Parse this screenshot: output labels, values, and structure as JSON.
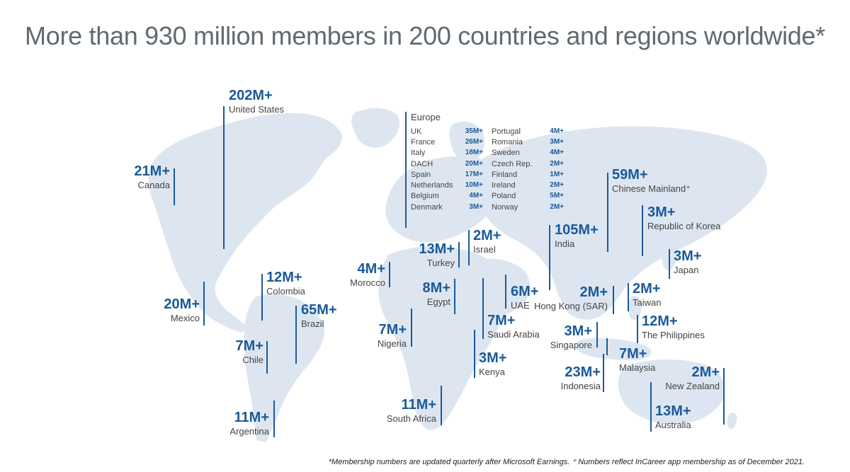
{
  "title": "More than 930 million members in 200 countries and regions worldwide*",
  "footnote": "*Membership numbers are updated quarterly after Microsoft Earnings. ⁺ Numbers reflect InCareer app membership as of December 2021.",
  "colors": {
    "accent": "#1a5a9a",
    "land": "#dde6f0",
    "title": "#5e6a71"
  },
  "regions": [
    {
      "value": "202M+",
      "name": "United States"
    },
    {
      "value": "21M+",
      "name": "Canada"
    },
    {
      "value": "12M+",
      "name": "Colombia"
    },
    {
      "value": "20M+",
      "name": "Mexico"
    },
    {
      "value": "65M+",
      "name": "Brazil"
    },
    {
      "value": "7M+",
      "name": "Chile"
    },
    {
      "value": "11M+",
      "name": "Argentina"
    },
    {
      "value": "4M+",
      "name": "Morocco"
    },
    {
      "value": "13M+",
      "name": "Turkey"
    },
    {
      "value": "2M+",
      "name": "Israel"
    },
    {
      "value": "8M+",
      "name": "Egypt"
    },
    {
      "value": "7M+",
      "name": "Nigeria"
    },
    {
      "value": "7M+",
      "name": "Saudi Arabia"
    },
    {
      "value": "3M+",
      "name": "Kenya"
    },
    {
      "value": "11M+",
      "name": "South Africa"
    },
    {
      "value": "6M+",
      "name": "UAE"
    },
    {
      "value": "105M+",
      "name": "India"
    },
    {
      "value": "59M+",
      "name": "Chinese Mainland⁺"
    },
    {
      "value": "3M+",
      "name": "Republic of Korea"
    },
    {
      "value": "3M+",
      "name": "Japan"
    },
    {
      "value": "2M+",
      "name": "Hong Kong (SAR)"
    },
    {
      "value": "2M+",
      "name": "Taiwan"
    },
    {
      "value": "12M+",
      "name": "The Philippines"
    },
    {
      "value": "3M+",
      "name": "Singapore"
    },
    {
      "value": "7M+",
      "name": "Malaysia"
    },
    {
      "value": "23M+",
      "name": "Indonesia"
    },
    {
      "value": "2M+",
      "name": "New Zealand"
    },
    {
      "value": "13M+",
      "name": "Australia"
    }
  ],
  "europe": {
    "heading": "Europe",
    "rows": [
      {
        "country": "UK",
        "value": "35M+"
      },
      {
        "country": "France",
        "value": "26M+"
      },
      {
        "country": "Italy",
        "value": "18M+"
      },
      {
        "country": "DACH",
        "value": "20M+"
      },
      {
        "country": "Spain",
        "value": "17M+"
      },
      {
        "country": "Netherlands",
        "value": "10M+"
      },
      {
        "country": "Belgium",
        "value": "4M+"
      },
      {
        "country": "Denmark",
        "value": "3M+"
      },
      {
        "country": "Portugal",
        "value": "4M+"
      },
      {
        "country": "Romania",
        "value": "3M+"
      },
      {
        "country": "Sweden",
        "value": "4M+"
      },
      {
        "country": "Czech Rep.",
        "value": "2M+"
      },
      {
        "country": "Finland",
        "value": "1M+"
      },
      {
        "country": "Ireland",
        "value": "2M+"
      },
      {
        "country": "Poland",
        "value": "5M+"
      },
      {
        "country": "Norway",
        "value": "2M+"
      }
    ]
  }
}
